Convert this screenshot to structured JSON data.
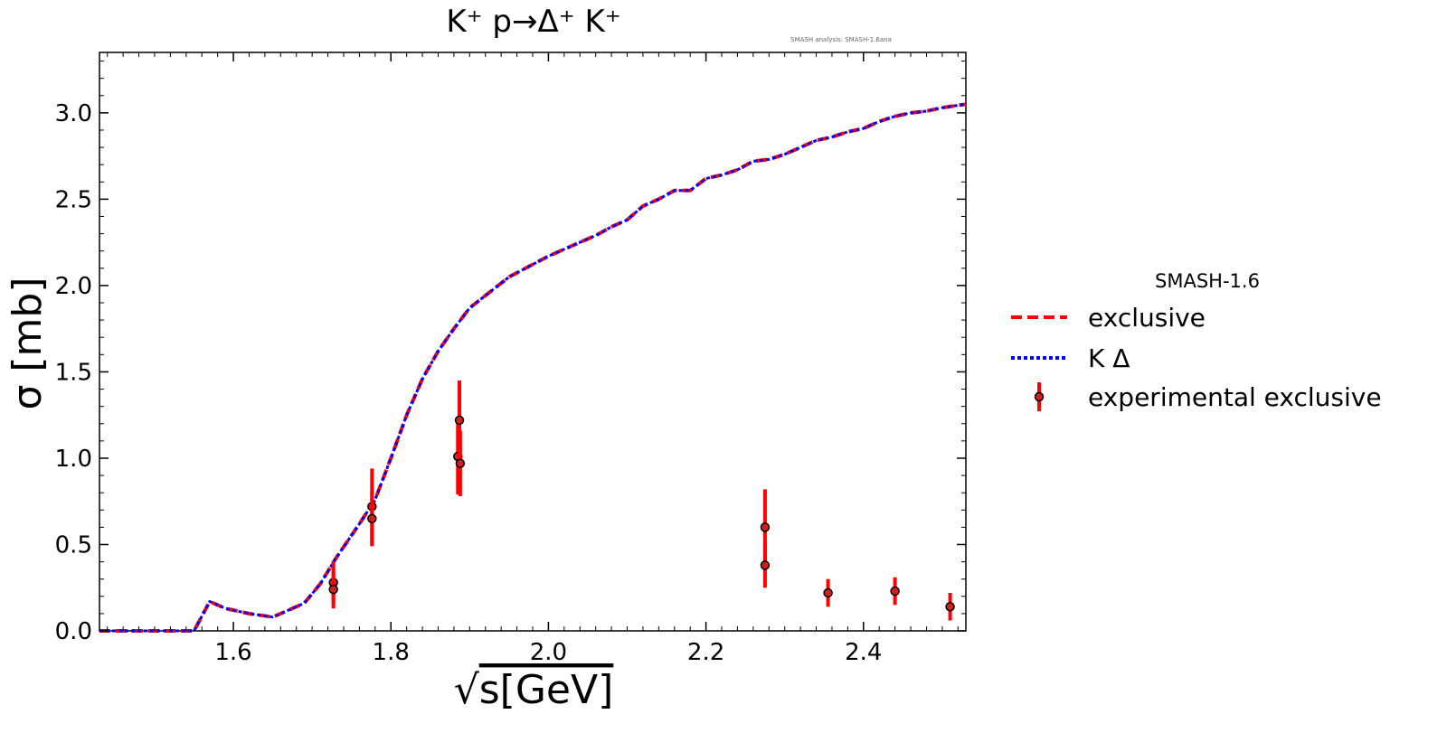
{
  "chart_data": {
    "type": "line",
    "title": "K⁺ p→Δ⁺ K⁺",
    "annotation": "SMASH analysis: SMASH-1.6ana",
    "xlabel": "√s[GeV]",
    "xlabel_radical": "√",
    "xlabel_rest": "s[GeV]",
    "ylabel": "σ [mb]",
    "xlim": [
      1.43,
      2.53
    ],
    "ylim": [
      0.0,
      3.35
    ],
    "x_ticks": [
      1.6,
      1.8,
      2.0,
      2.2,
      2.4
    ],
    "x_tick_labels": [
      "1.6",
      "1.8",
      "2.0",
      "2.2",
      "2.4"
    ],
    "y_ticks": [
      0.0,
      0.5,
      1.0,
      1.5,
      2.0,
      2.5,
      3.0
    ],
    "y_tick_labels": [
      "0.0",
      "0.5",
      "1.0",
      "1.5",
      "2.0",
      "2.5",
      "3.0"
    ],
    "grid": false,
    "legend": {
      "title": "SMASH-1.6",
      "placement": "outside-right"
    },
    "series": [
      {
        "name": "exclusive",
        "style": "dashed",
        "color": "#ff0000",
        "x": [
          1.43,
          1.55,
          1.57,
          1.59,
          1.62,
          1.65,
          1.69,
          1.71,
          1.73,
          1.76,
          1.78,
          1.8,
          1.82,
          1.84,
          1.86,
          1.88,
          1.9,
          1.95,
          2.0,
          2.02,
          2.04,
          2.06,
          2.08,
          2.1,
          2.12,
          2.14,
          2.16,
          2.18,
          2.2,
          2.22,
          2.24,
          2.26,
          2.28,
          2.3,
          2.32,
          2.34,
          2.36,
          2.38,
          2.4,
          2.42,
          2.44,
          2.46,
          2.48,
          2.5,
          2.53
        ],
        "y": [
          0.0,
          0.0,
          0.17,
          0.13,
          0.1,
          0.08,
          0.16,
          0.27,
          0.42,
          0.62,
          0.76,
          1.0,
          1.25,
          1.46,
          1.62,
          1.75,
          1.87,
          2.05,
          2.17,
          2.21,
          2.25,
          2.29,
          2.34,
          2.38,
          2.46,
          2.5,
          2.55,
          2.55,
          2.62,
          2.64,
          2.67,
          2.72,
          2.73,
          2.76,
          2.8,
          2.84,
          2.86,
          2.89,
          2.91,
          2.95,
          2.98,
          3.0,
          3.01,
          3.03,
          3.05
        ]
      },
      {
        "name": "K Δ",
        "style": "dotted",
        "color": "#0000ff",
        "x": [
          1.43,
          1.55,
          1.57,
          1.59,
          1.62,
          1.65,
          1.69,
          1.71,
          1.73,
          1.76,
          1.78,
          1.8,
          1.82,
          1.84,
          1.86,
          1.88,
          1.9,
          1.95,
          2.0,
          2.02,
          2.04,
          2.06,
          2.08,
          2.1,
          2.12,
          2.14,
          2.16,
          2.18,
          2.2,
          2.22,
          2.24,
          2.26,
          2.28,
          2.3,
          2.32,
          2.34,
          2.36,
          2.38,
          2.4,
          2.42,
          2.44,
          2.46,
          2.48,
          2.5,
          2.53
        ],
        "y": [
          0.0,
          0.0,
          0.17,
          0.13,
          0.1,
          0.08,
          0.16,
          0.27,
          0.42,
          0.62,
          0.76,
          1.0,
          1.25,
          1.46,
          1.62,
          1.75,
          1.87,
          2.05,
          2.17,
          2.21,
          2.25,
          2.29,
          2.34,
          2.38,
          2.46,
          2.5,
          2.55,
          2.55,
          2.62,
          2.64,
          2.67,
          2.72,
          2.73,
          2.76,
          2.8,
          2.84,
          2.86,
          2.89,
          2.91,
          2.95,
          2.98,
          3.0,
          3.01,
          3.03,
          3.05
        ]
      }
    ],
    "experimental": {
      "name": "experimental exclusive",
      "color": "#ff0000",
      "points": [
        {
          "x": 1.727,
          "y": 0.28,
          "err": 0.12
        },
        {
          "x": 1.727,
          "y": 0.24,
          "err": 0.11
        },
        {
          "x": 1.776,
          "y": 0.72,
          "err": 0.22
        },
        {
          "x": 1.776,
          "y": 0.65,
          "err": 0.16
        },
        {
          "x": 1.885,
          "y": 1.01,
          "err": 0.22
        },
        {
          "x": 1.887,
          "y": 1.22,
          "err": 0.23
        },
        {
          "x": 1.888,
          "y": 0.97,
          "err": 0.19
        },
        {
          "x": 2.275,
          "y": 0.6,
          "err": 0.22
        },
        {
          "x": 2.275,
          "y": 0.38,
          "err": 0.13
        },
        {
          "x": 2.355,
          "y": 0.22,
          "err": 0.08
        },
        {
          "x": 2.44,
          "y": 0.23,
          "err": 0.08
        },
        {
          "x": 2.51,
          "y": 0.14,
          "err": 0.08
        }
      ]
    }
  }
}
